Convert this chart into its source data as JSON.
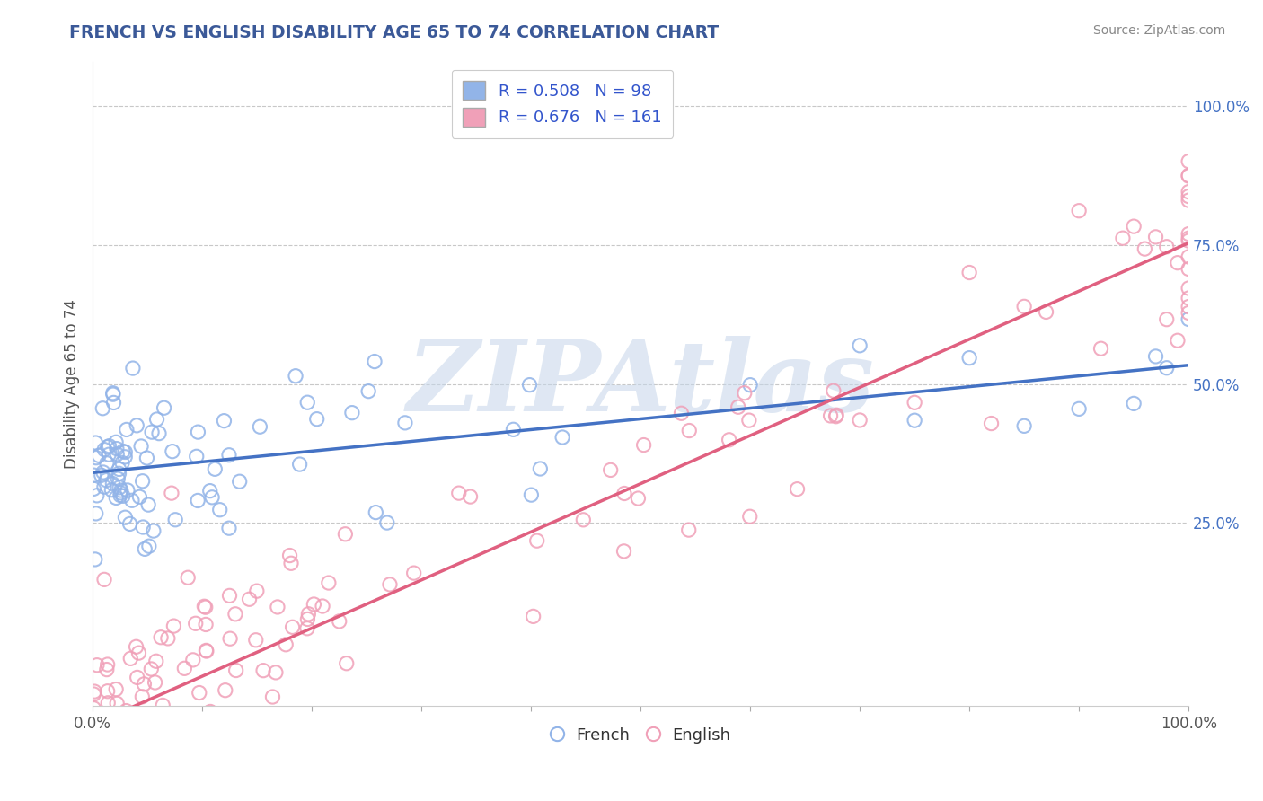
{
  "title": "FRENCH VS ENGLISH DISABILITY AGE 65 TO 74 CORRELATION CHART",
  "source": "Source: ZipAtlas.com",
  "ylabel": "Disability Age 65 to 74",
  "xlim": [
    0,
    1
  ],
  "ylim": [
    -0.08,
    1.08
  ],
  "french_R": 0.508,
  "french_N": 98,
  "english_R": 0.676,
  "english_N": 161,
  "french_color": "#92B4E8",
  "english_color": "#F0A0B8",
  "french_line_color": "#4472C4",
  "english_line_color": "#E06080",
  "legend_label_color": "#3355CC",
  "title_color": "#3B5998",
  "ytick_color": "#4472C4",
  "background_color": "#FFFFFF",
  "watermark": "ZIPAtlas",
  "xtick_labels": [
    "0.0%",
    "",
    "",
    "",
    "",
    "",
    "",
    "",
    "",
    "",
    "100.0%"
  ],
  "xtick_positions": [
    0.0,
    0.1,
    0.2,
    0.3,
    0.4,
    0.5,
    0.6,
    0.7,
    0.8,
    0.9,
    1.0
  ],
  "ytick_labels": [
    "25.0%",
    "50.0%",
    "75.0%",
    "100.0%"
  ],
  "ytick_values": [
    0.25,
    0.5,
    0.75,
    1.0
  ],
  "french_line_intercept": 0.34,
  "french_line_slope": 0.2,
  "english_line_intercept": -0.1,
  "english_line_slope": 0.88
}
